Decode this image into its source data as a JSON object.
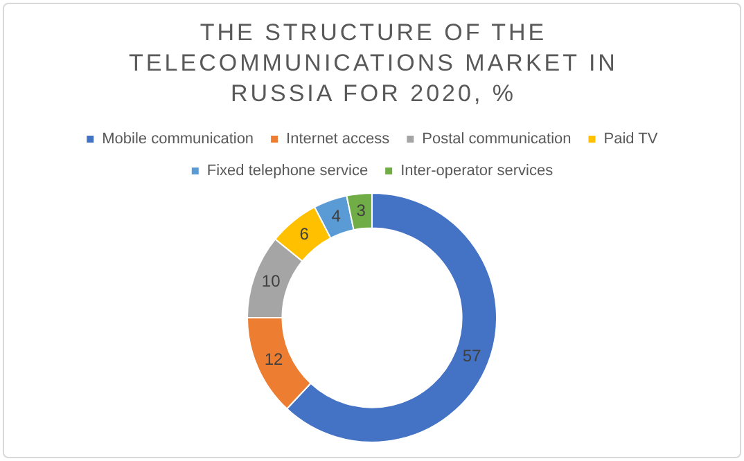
{
  "chart_data": {
    "type": "donut",
    "title": "THE STRUCTURE OF THE TELECOMMUNICATIONS MARKET IN RUSSIA FOR 2020, %",
    "categories": [
      "Mobile communication",
      "Internet access",
      "Postal communication",
      "Paid TV",
      "Fixed telephone service",
      "Inter-operator services"
    ],
    "values": [
      57,
      12,
      10,
      6,
      4,
      3
    ],
    "colors": [
      "#4472c4",
      "#ed7d31",
      "#a5a5a5",
      "#ffc000",
      "#5b9bd5",
      "#70ad47"
    ],
    "legend": "top",
    "data_labels": true
  }
}
